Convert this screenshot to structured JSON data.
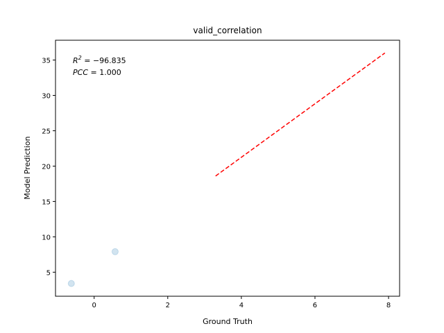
{
  "chart_data": {
    "type": "scatter",
    "title": "valid_correlation",
    "xlabel": "Ground Truth",
    "ylabel": "Model Prediction",
    "xlim": [
      -1.05,
      8.3
    ],
    "ylim": [
      1.6,
      37.8
    ],
    "xticks": [
      0,
      2,
      4,
      6,
      8
    ],
    "yticks": [
      5,
      10,
      15,
      20,
      25,
      30,
      35
    ],
    "grid": false,
    "points": [
      {
        "x": -0.62,
        "y": 3.4
      },
      {
        "x": 0.57,
        "y": 7.9
      }
    ],
    "point_color": "#1f77b4",
    "fit_line": {
      "x": [
        3.3,
        7.9
      ],
      "y": [
        18.6,
        36.0
      ],
      "color": "#ff0000",
      "style": "dashed"
    },
    "annotations": {
      "r2": {
        "symbol": "R",
        "sup": "2",
        "value": " = −96.835"
      },
      "pcc": {
        "symbol": "PCC",
        "value": " = 1.000"
      }
    }
  }
}
